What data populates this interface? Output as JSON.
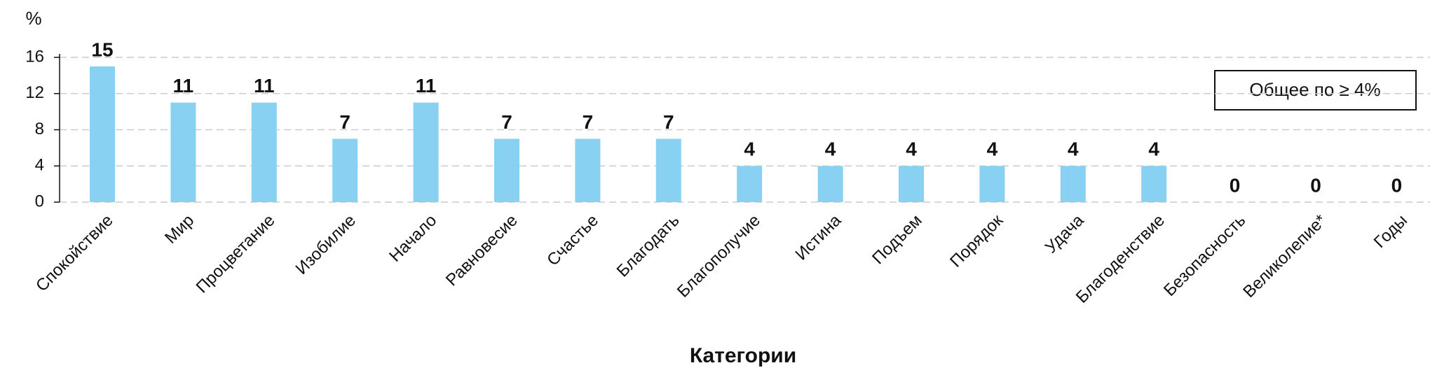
{
  "chart_data": {
    "type": "bar",
    "y_label": "%",
    "x_label": "Категории",
    "annotation": "Общее по ≥ 4%",
    "categories": [
      "Спокойствие",
      "Мир",
      "Процветание",
      "Изобилие",
      "Начало",
      "Равновесие",
      "Счастье",
      "Благодать",
      "Благополучие",
      "Истина",
      "Подъем",
      "Порядок",
      "Удача",
      "Благоденствие",
      "Безопасность",
      "Великолепие*",
      "Годы"
    ],
    "values": [
      15,
      11,
      11,
      7,
      11,
      7,
      7,
      7,
      4,
      4,
      4,
      4,
      4,
      4,
      0,
      0,
      0
    ],
    "color": "#88d1f3",
    "ylim": [
      0,
      16
    ],
    "yticks": [
      0,
      4,
      8,
      12,
      16
    ],
    "grid": true
  }
}
